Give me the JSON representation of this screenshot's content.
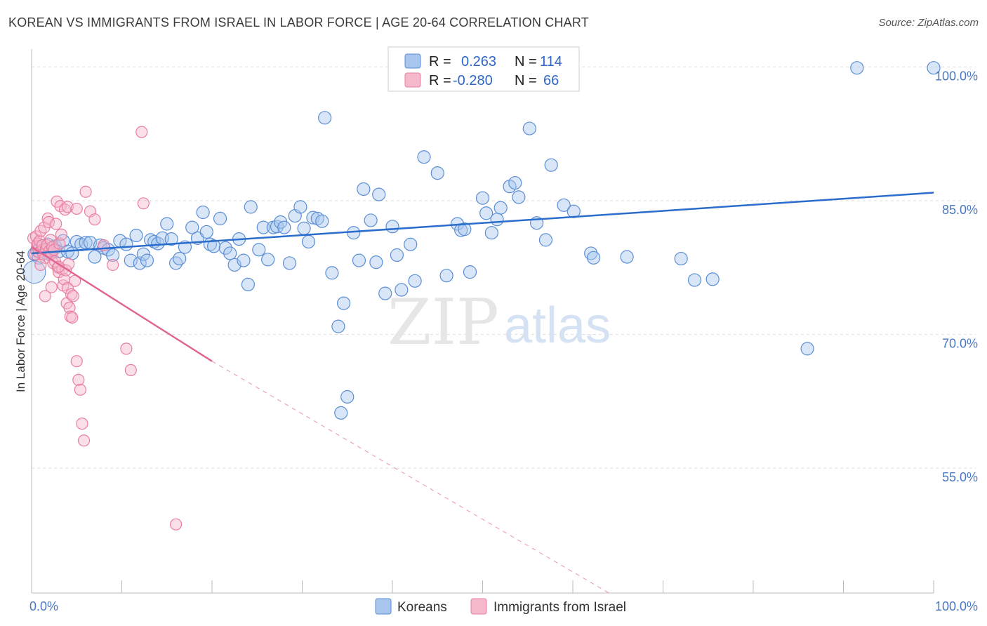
{
  "title": "KOREAN VS IMMIGRANTS FROM ISRAEL IN LABOR FORCE | AGE 20-64 CORRELATION CHART",
  "source": "Source: ZipAtlas.com",
  "watermark": {
    "zip": "ZIP",
    "atlas": "atlas"
  },
  "colors": {
    "koreans_fill": "#a9c7ee",
    "koreans_stroke": "#5b8ed6",
    "koreans_line": "#2a6dcc",
    "israel_fill": "#f6b8cb",
    "israel_stroke": "#e87fa2",
    "israel_line": "#e06592",
    "grid": "#dddddd",
    "tick_label": "#4a78c2"
  },
  "legend": {
    "rows": [
      {
        "r_label": "R =",
        "r_value": "0.263",
        "n_label": "N =",
        "n_value": "114"
      },
      {
        "r_label": "R =",
        "r_value": "-0.280",
        "n_label": "N =",
        "n_value": "66"
      }
    ]
  },
  "chart_data": {
    "type": "scatter",
    "title": "KOREAN VS IMMIGRANTS FROM ISRAEL IN LABOR FORCE | AGE 20-64 CORRELATION CHART",
    "xlabel": "",
    "ylabel": "In Labor Force | Age 20-64",
    "xlim": [
      0,
      100
    ],
    "ylim": [
      41,
      102
    ],
    "x_tick_labels": [
      "0.0%",
      "100.0%"
    ],
    "y_ticks": [
      55,
      70,
      85,
      100
    ],
    "y_tick_labels": [
      "55.0%",
      "70.0%",
      "85.0%",
      "100.0%"
    ],
    "grid": true,
    "legend_position": "top-center",
    "series": [
      {
        "name": "Koreans",
        "r": 0.263,
        "n": 114,
        "trend": {
          "x": [
            0,
            100
          ],
          "y": [
            79.1,
            85.9
          ],
          "dashed_from_x": null
        },
        "points": [
          [
            0.3,
            79.0
          ],
          [
            0.6,
            79.4
          ],
          [
            0.8,
            78.6
          ],
          [
            1.0,
            79.8
          ],
          [
            1.2,
            79.5
          ],
          [
            1.5,
            79.2
          ],
          [
            1.8,
            80.1
          ],
          [
            2.0,
            79.0
          ],
          [
            2.3,
            79.6
          ],
          [
            2.6,
            79.9
          ],
          [
            3.0,
            79.3
          ],
          [
            3.5,
            80.5
          ],
          [
            4.0,
            79.3
          ],
          [
            4.5,
            79.1
          ],
          [
            5.0,
            80.4
          ],
          [
            5.5,
            80.1
          ],
          [
            6.0,
            80.3
          ],
          [
            6.5,
            80.3
          ],
          [
            7.0,
            78.7
          ],
          [
            7.6,
            80.0
          ],
          [
            8.0,
            79.7
          ],
          [
            8.5,
            79.5
          ],
          [
            9.0,
            78.9
          ],
          [
            9.8,
            80.5
          ],
          [
            10.5,
            80.1
          ],
          [
            11.0,
            78.3
          ],
          [
            11.6,
            81.1
          ],
          [
            12.0,
            78.0
          ],
          [
            12.4,
            79.0
          ],
          [
            12.8,
            78.3
          ],
          [
            13.2,
            80.6
          ],
          [
            13.6,
            80.4
          ],
          [
            14.0,
            80.2
          ],
          [
            14.5,
            80.8
          ],
          [
            15.0,
            82.4
          ],
          [
            15.5,
            80.7
          ],
          [
            16.0,
            78.0
          ],
          [
            16.4,
            78.5
          ],
          [
            17.0,
            79.8
          ],
          [
            17.8,
            82.0
          ],
          [
            18.4,
            80.8
          ],
          [
            19.0,
            83.7
          ],
          [
            19.4,
            81.5
          ],
          [
            19.8,
            80.1
          ],
          [
            20.2,
            79.9
          ],
          [
            20.9,
            83.0
          ],
          [
            21.5,
            79.7
          ],
          [
            22.0,
            79.1
          ],
          [
            22.5,
            77.8
          ],
          [
            23.0,
            80.7
          ],
          [
            23.5,
            78.3
          ],
          [
            24.0,
            75.6
          ],
          [
            24.3,
            84.3
          ],
          [
            25.2,
            79.5
          ],
          [
            25.7,
            82.0
          ],
          [
            26.2,
            78.4
          ],
          [
            26.8,
            82.0
          ],
          [
            27.2,
            82.1
          ],
          [
            27.6,
            82.6
          ],
          [
            28.0,
            82.0
          ],
          [
            28.6,
            78.0
          ],
          [
            29.2,
            83.3
          ],
          [
            29.8,
            84.3
          ],
          [
            30.2,
            81.9
          ],
          [
            30.7,
            80.4
          ],
          [
            31.2,
            83.1
          ],
          [
            31.7,
            83.0
          ],
          [
            32.2,
            82.7
          ],
          [
            32.5,
            94.3
          ],
          [
            33.3,
            76.9
          ],
          [
            34.0,
            70.9
          ],
          [
            34.6,
            73.5
          ],
          [
            35.0,
            63.0
          ],
          [
            34.3,
            61.2
          ],
          [
            35.7,
            81.4
          ],
          [
            36.3,
            78.3
          ],
          [
            36.8,
            86.3
          ],
          [
            37.6,
            82.8
          ],
          [
            38.2,
            78.1
          ],
          [
            38.5,
            85.7
          ],
          [
            39.2,
            74.6
          ],
          [
            40.0,
            82.1
          ],
          [
            40.5,
            78.9
          ],
          [
            41.0,
            75.0
          ],
          [
            42.0,
            80.1
          ],
          [
            42.5,
            76.0
          ],
          [
            43.5,
            89.9
          ],
          [
            45.0,
            88.1
          ],
          [
            46.0,
            76.6
          ],
          [
            47.2,
            82.4
          ],
          [
            47.6,
            81.7
          ],
          [
            48.0,
            81.8
          ],
          [
            48.6,
            77.0
          ],
          [
            50.0,
            85.3
          ],
          [
            50.4,
            83.6
          ],
          [
            51.0,
            81.4
          ],
          [
            51.6,
            82.9
          ],
          [
            52.0,
            84.2
          ],
          [
            53.0,
            86.6
          ],
          [
            53.6,
            87.0
          ],
          [
            54.0,
            85.4
          ],
          [
            55.2,
            93.1
          ],
          [
            56.0,
            82.5
          ],
          [
            57.0,
            80.6
          ],
          [
            57.6,
            89.0
          ],
          [
            59.0,
            84.5
          ],
          [
            60.1,
            83.8
          ],
          [
            62.0,
            79.1
          ],
          [
            62.3,
            78.6
          ],
          [
            66.0,
            78.7
          ],
          [
            72.0,
            78.5
          ],
          [
            73.5,
            76.1
          ],
          [
            75.5,
            76.2
          ],
          [
            86.0,
            68.4
          ],
          [
            91.5,
            99.9
          ],
          [
            100.0,
            99.9
          ]
        ]
      },
      {
        "name": "Immigrants from Israel",
        "r": -0.28,
        "n": 66,
        "trend": {
          "x": [
            0,
            20
          ],
          "y": [
            79.8,
            67.0
          ],
          "dashed_to": [
            64,
            39.0
          ]
        },
        "points": [
          [
            0.2,
            80.8
          ],
          [
            0.4,
            79.0
          ],
          [
            0.5,
            81.0
          ],
          [
            0.6,
            79.9
          ],
          [
            0.7,
            80.2
          ],
          [
            0.8,
            79.2
          ],
          [
            0.9,
            80.5
          ],
          [
            1.0,
            81.6
          ],
          [
            1.1,
            79.4
          ],
          [
            1.2,
            80.0
          ],
          [
            1.3,
            79.0
          ],
          [
            1.4,
            82.0
          ],
          [
            1.5,
            78.6
          ],
          [
            1.6,
            79.6
          ],
          [
            1.7,
            80.0
          ],
          [
            1.8,
            83.0
          ],
          [
            1.9,
            82.6
          ],
          [
            2.0,
            79.4
          ],
          [
            2.1,
            80.6
          ],
          [
            2.2,
            79.1
          ],
          [
            2.3,
            79.8
          ],
          [
            2.4,
            78.0
          ],
          [
            2.5,
            79.5
          ],
          [
            2.6,
            78.2
          ],
          [
            2.7,
            82.4
          ],
          [
            2.8,
            84.9
          ],
          [
            2.9,
            77.5
          ],
          [
            3.0,
            77.0
          ],
          [
            3.1,
            80.2
          ],
          [
            3.2,
            84.4
          ],
          [
            3.3,
            81.2
          ],
          [
            3.4,
            77.3
          ],
          [
            3.5,
            75.5
          ],
          [
            3.6,
            76.2
          ],
          [
            3.7,
            84.0
          ],
          [
            3.8,
            77.2
          ],
          [
            3.9,
            73.5
          ],
          [
            4.0,
            75.2
          ],
          [
            4.1,
            77.9
          ],
          [
            4.2,
            73.0
          ],
          [
            4.3,
            72.0
          ],
          [
            4.4,
            74.5
          ],
          [
            4.5,
            71.9
          ],
          [
            4.6,
            74.3
          ],
          [
            4.8,
            76.0
          ],
          [
            5.0,
            67.0
          ],
          [
            5.2,
            64.9
          ],
          [
            5.4,
            63.8
          ],
          [
            5.6,
            60.0
          ],
          [
            5.8,
            58.1
          ],
          [
            4.0,
            84.3
          ],
          [
            5.0,
            84.1
          ],
          [
            6.0,
            86.0
          ],
          [
            6.5,
            83.8
          ],
          [
            7.0,
            82.9
          ],
          [
            8.0,
            80.0
          ],
          [
            9.0,
            77.8
          ],
          [
            10.5,
            68.4
          ],
          [
            11.0,
            66.0
          ],
          [
            12.2,
            92.7
          ],
          [
            12.4,
            84.7
          ],
          [
            3.0,
            77.6
          ],
          [
            2.2,
            75.3
          ],
          [
            1.5,
            74.3
          ],
          [
            1.0,
            77.8
          ],
          [
            16.0,
            48.7
          ]
        ]
      }
    ]
  },
  "bottom_legend": [
    {
      "label": "Koreans"
    },
    {
      "label": "Immigrants from Israel"
    }
  ]
}
